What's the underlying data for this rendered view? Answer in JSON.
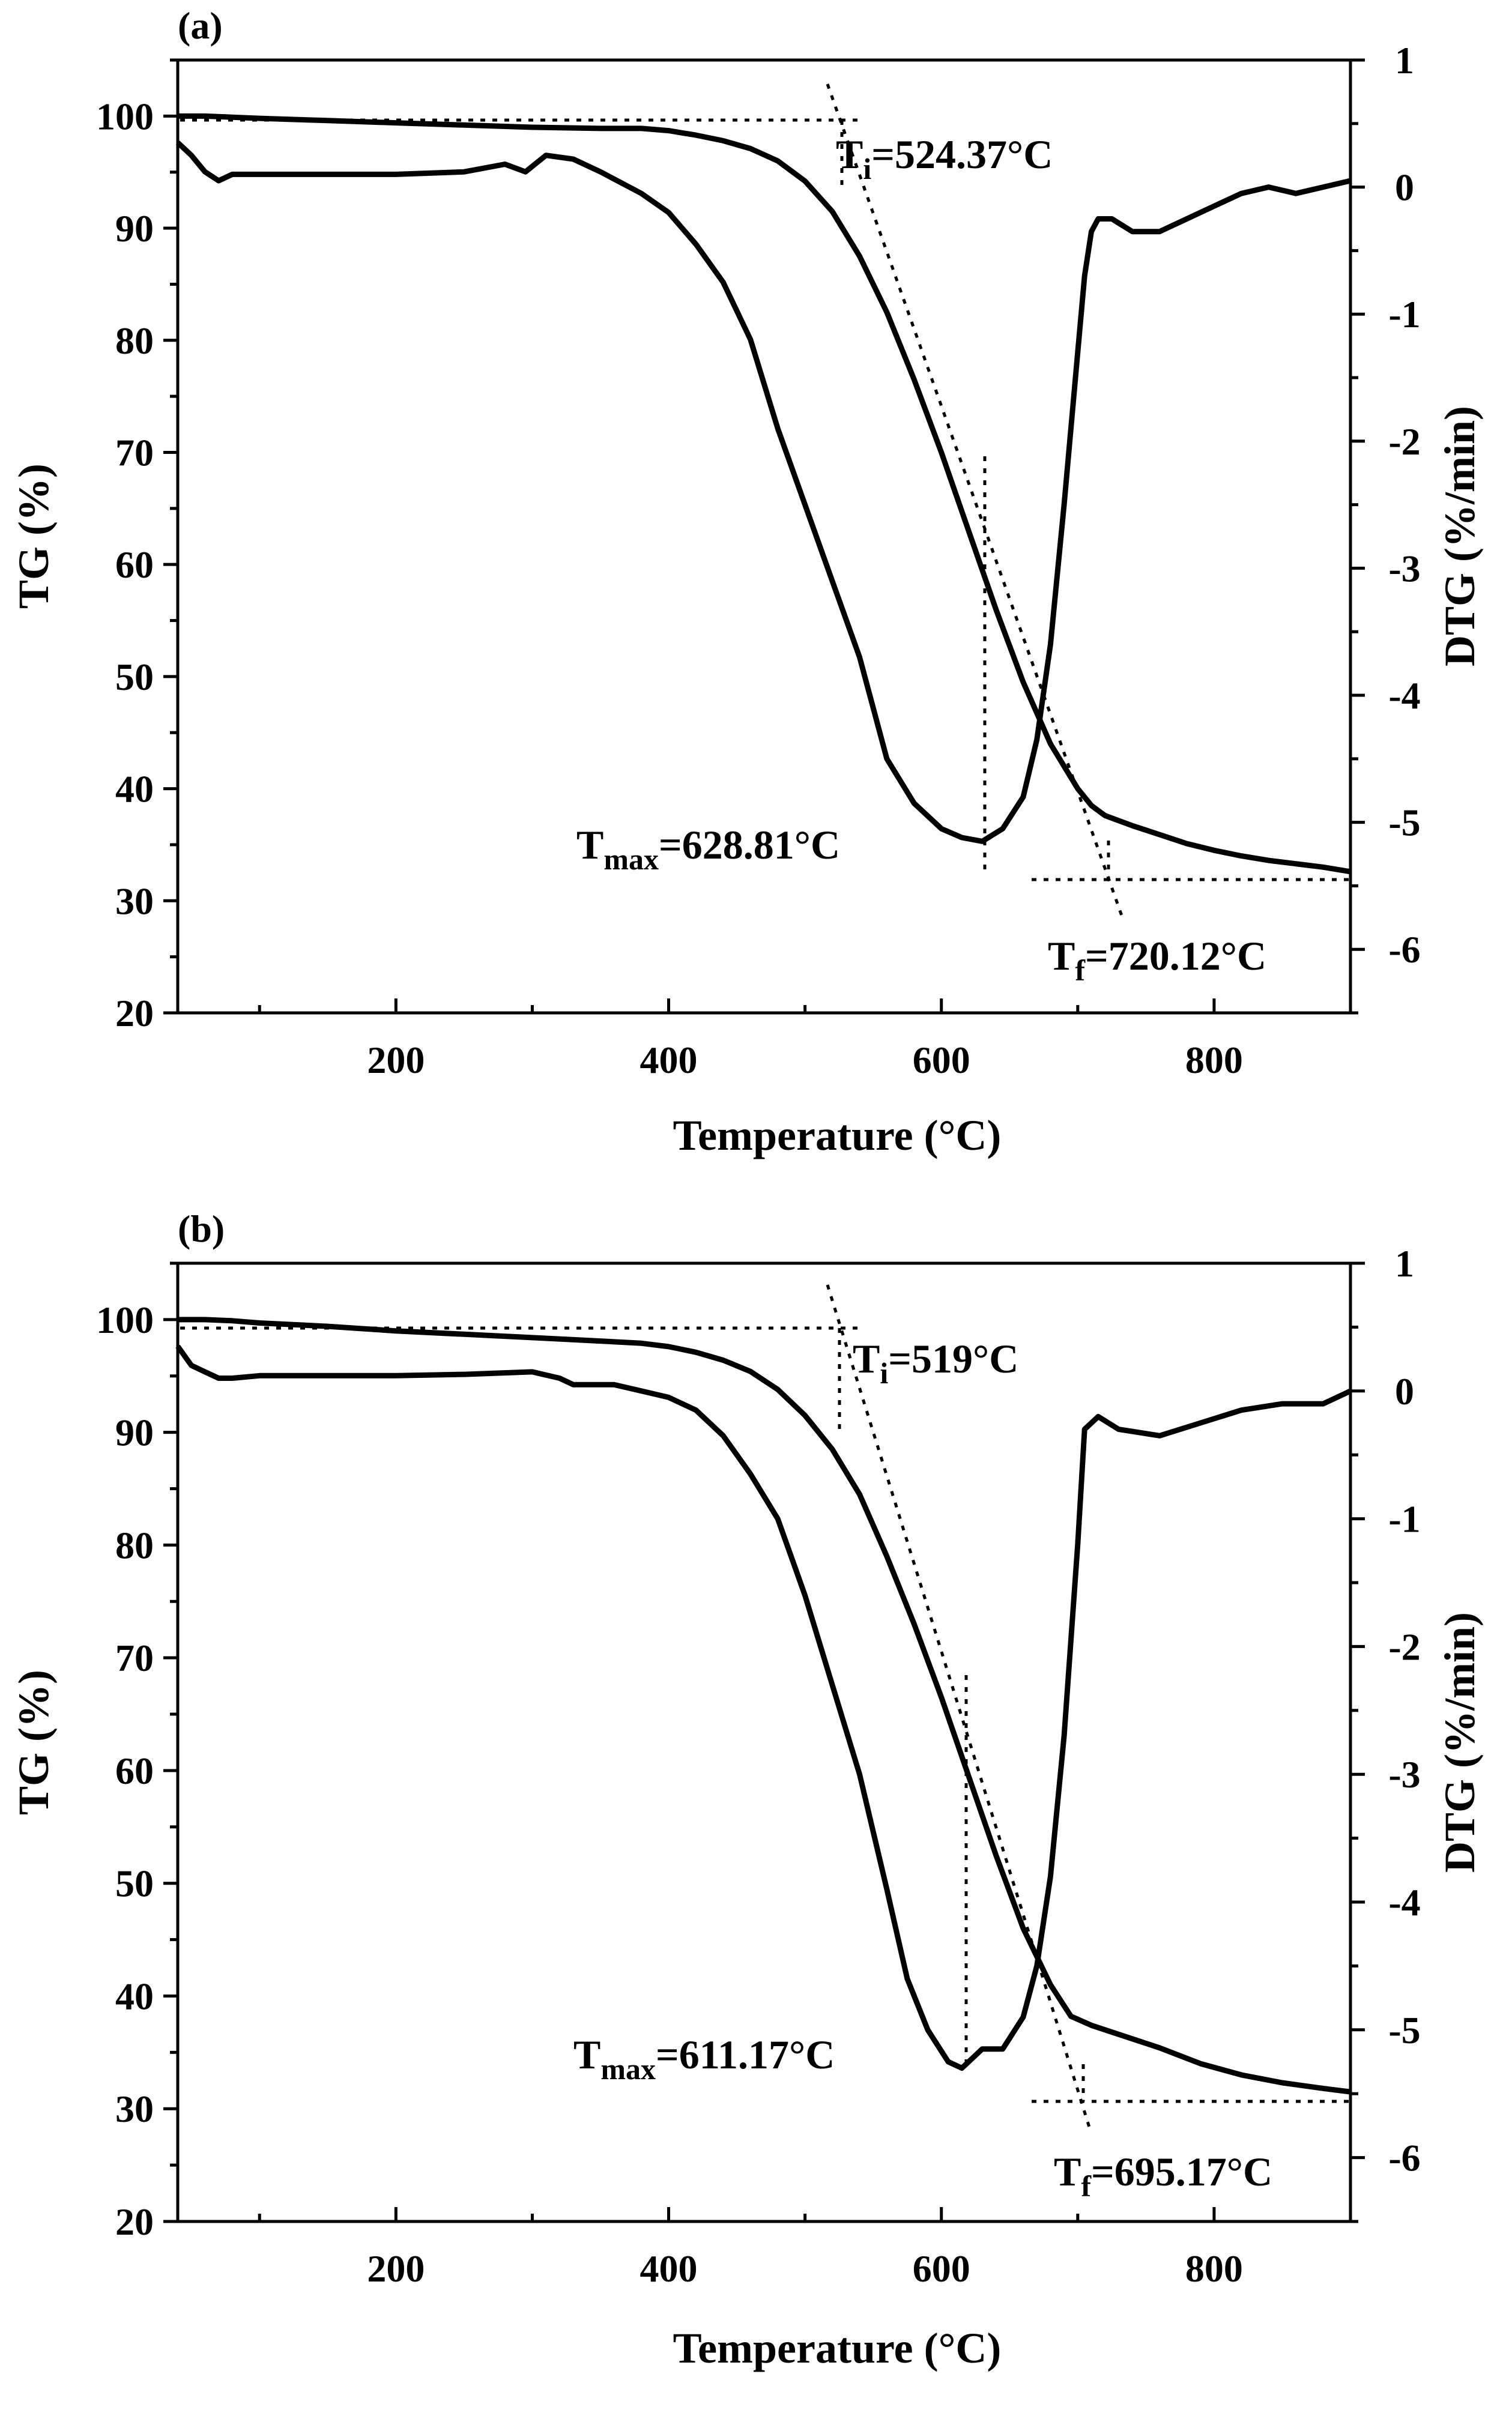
{
  "chart_data": [
    {
      "type": "line",
      "panel_label": "(a)",
      "xlabel": "Temperature (°C)",
      "ylabel": "TG (%)",
      "y2label": "DTG (%/min)",
      "xlim": [
        40,
        900
      ],
      "ylim": [
        20,
        105
      ],
      "y2lim": [
        -6.5,
        1
      ],
      "xticks": [
        200,
        400,
        600,
        800
      ],
      "yticks": [
        20,
        30,
        40,
        50,
        60,
        70,
        80,
        90,
        100
      ],
      "y2ticks": [
        1,
        0,
        -1,
        -2,
        -3,
        -4,
        -5,
        -6
      ],
      "series": [
        {
          "name": "TG",
          "axis": "left",
          "x": [
            40,
            60,
            80,
            100,
            150,
            200,
            250,
            300,
            350,
            380,
            400,
            420,
            440,
            460,
            480,
            500,
            520,
            540,
            560,
            580,
            600,
            620,
            640,
            660,
            680,
            700,
            710,
            720,
            740,
            760,
            780,
            800,
            820,
            840,
            860,
            880,
            900
          ],
          "y": [
            100.0,
            100.0,
            99.9,
            99.8,
            99.6,
            99.4,
            99.2,
            99.0,
            98.9,
            98.9,
            98.7,
            98.3,
            97.8,
            97.1,
            96.0,
            94.2,
            91.5,
            87.5,
            82.5,
            76.5,
            70.0,
            63.0,
            56.0,
            49.5,
            44.0,
            40.0,
            38.5,
            37.6,
            36.7,
            35.9,
            35.1,
            34.5,
            34.0,
            33.6,
            33.3,
            33.0,
            32.6
          ]
        },
        {
          "name": "DTG",
          "axis": "right",
          "x": [
            40,
            50,
            60,
            70,
            80,
            100,
            150,
            200,
            250,
            280,
            295,
            310,
            330,
            350,
            380,
            400,
            420,
            440,
            460,
            480,
            500,
            520,
            540,
            560,
            580,
            600,
            615,
            630,
            645,
            660,
            670,
            680,
            690,
            700,
            705,
            710,
            715,
            725,
            740,
            760,
            780,
            800,
            820,
            840,
            860,
            880,
            900
          ],
          "y": [
            0.35,
            0.25,
            0.12,
            0.05,
            0.1,
            0.1,
            0.1,
            0.1,
            0.12,
            0.18,
            0.12,
            0.25,
            0.22,
            0.12,
            -0.05,
            -0.2,
            -0.45,
            -0.75,
            -1.2,
            -1.9,
            -2.5,
            -3.1,
            -3.7,
            -4.5,
            -4.85,
            -5.05,
            -5.12,
            -5.15,
            -5.05,
            -4.8,
            -4.35,
            -3.6,
            -2.5,
            -1.3,
            -0.7,
            -0.35,
            -0.25,
            -0.25,
            -0.35,
            -0.35,
            -0.25,
            -0.15,
            -0.05,
            0.0,
            -0.05,
            0.0,
            0.05
          ]
        }
      ],
      "annotations": [
        {
          "sub": "i",
          "value": "=524.37°C",
          "temperature": 524.37
        },
        {
          "sub": "max",
          "value": "=628.81°C",
          "temperature": 628.81
        },
        {
          "sub": "f",
          "value": "=720.12°C",
          "temperature": 720.12
        }
      ]
    },
    {
      "type": "line",
      "panel_label": "(b)",
      "xlabel": "Temperature (°C)",
      "ylabel": "TG (%)",
      "y2label": "DTG (%/min)",
      "xlim": [
        40,
        900
      ],
      "ylim": [
        20,
        105
      ],
      "y2lim": [
        -6.5,
        1
      ],
      "xticks": [
        200,
        400,
        600,
        800
      ],
      "yticks": [
        20,
        30,
        40,
        50,
        60,
        70,
        80,
        90,
        100
      ],
      "y2ticks": [
        1,
        0,
        -1,
        -2,
        -3,
        -4,
        -5,
        -6
      ],
      "series": [
        {
          "name": "TG",
          "axis": "left",
          "x": [
            40,
            60,
            80,
            100,
            150,
            200,
            250,
            300,
            350,
            380,
            400,
            420,
            440,
            460,
            480,
            500,
            520,
            540,
            560,
            580,
            600,
            620,
            640,
            660,
            680,
            695,
            710,
            730,
            760,
            790,
            820,
            850,
            880,
            900
          ],
          "y": [
            100.0,
            100.0,
            99.9,
            99.7,
            99.4,
            99.0,
            98.7,
            98.4,
            98.1,
            97.9,
            97.6,
            97.1,
            96.4,
            95.4,
            93.8,
            91.5,
            88.5,
            84.5,
            79.0,
            73.0,
            66.5,
            59.5,
            52.5,
            46.0,
            41.0,
            38.2,
            37.4,
            36.6,
            35.4,
            34.0,
            33.0,
            32.3,
            31.8,
            31.5
          ]
        },
        {
          "name": "DTG",
          "axis": "right",
          "x": [
            40,
            50,
            60,
            70,
            80,
            100,
            150,
            200,
            250,
            300,
            320,
            330,
            360,
            380,
            400,
            420,
            440,
            460,
            480,
            500,
            520,
            540,
            560,
            575,
            590,
            605,
            615,
            630,
            645,
            660,
            670,
            680,
            690,
            700,
            705,
            715,
            730,
            760,
            790,
            820,
            850,
            880,
            900
          ],
          "y": [
            0.35,
            0.2,
            0.15,
            0.1,
            0.1,
            0.12,
            0.12,
            0.12,
            0.13,
            0.15,
            0.1,
            0.05,
            0.05,
            0.0,
            -0.05,
            -0.15,
            -0.35,
            -0.65,
            -1.0,
            -1.6,
            -2.3,
            -3.0,
            -3.9,
            -4.6,
            -5.0,
            -5.25,
            -5.3,
            -5.15,
            -5.15,
            -4.9,
            -4.5,
            -3.8,
            -2.7,
            -1.2,
            -0.3,
            -0.2,
            -0.3,
            -0.35,
            -0.25,
            -0.15,
            -0.1,
            -0.1,
            0.0
          ]
        }
      ],
      "annotations": [
        {
          "sub": "i",
          "value": "=519°C",
          "temperature": 519
        },
        {
          "sub": "max",
          "value": "=611.17°C",
          "temperature": 611.17
        },
        {
          "sub": "f",
          "value": "=695.17°C",
          "temperature": 695.17
        }
      ]
    }
  ]
}
